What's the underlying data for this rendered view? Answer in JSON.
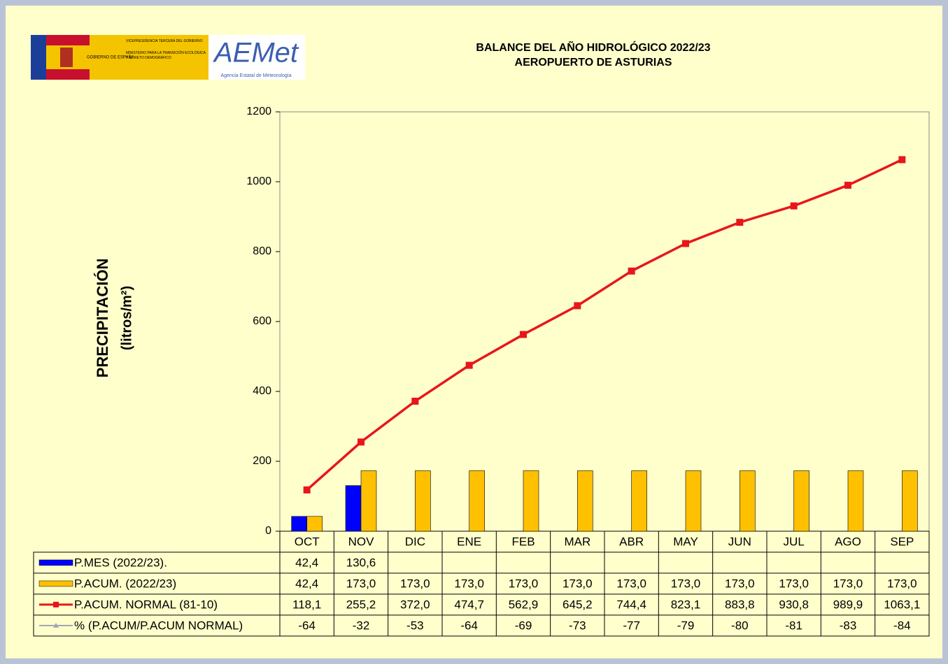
{
  "logo": {
    "gov": "GOBIERNO DE ESPAÑA",
    "vice": "VICEPRESIDENCIA TERCERA DEL GOBIERNO",
    "ministry": "MINISTERIO PARA LA TRANSICIÓN ECOLÓGICA Y EL RETO DEMOGRÁFICO",
    "brand": "AEMet",
    "agency": "Agencia Estatal de Meteorología"
  },
  "chart_data": {
    "type": "bar-line-table",
    "title": "BALANCE DEL AÑO HIDROLÓGICO 2022/23",
    "subtitle": "AEROPUERTO DE ASTURIAS",
    "ylabel": [
      "PRECIPITACIÓN",
      "(litros/m²)"
    ],
    "categories": [
      "OCT",
      "NOV",
      "DIC",
      "ENE",
      "FEB",
      "MAR",
      "ABR",
      "MAY",
      "JUN",
      "JUL",
      "AGO",
      "SEP"
    ],
    "ylim": [
      0,
      1200
    ],
    "yticks": [
      0,
      200,
      400,
      600,
      800,
      1000,
      1200
    ],
    "series": [
      {
        "name": "P.MES  (2022/23).",
        "kind": "bar",
        "color": "#0000ff",
        "values": [
          42.4,
          130.6,
          null,
          null,
          null,
          null,
          null,
          null,
          null,
          null,
          null,
          null
        ],
        "value_labels": [
          "42,4",
          "130,6",
          null,
          null,
          null,
          null,
          null,
          null,
          null,
          null,
          null,
          null
        ]
      },
      {
        "name": "P.ACUM.  (2022/23)",
        "kind": "bar",
        "color": "#ffc000",
        "values": [
          42.4,
          173.0,
          173.0,
          173.0,
          173.0,
          173.0,
          173.0,
          173.0,
          173.0,
          173.0,
          173.0,
          173.0
        ],
        "value_labels": [
          "42,4",
          "173,0",
          "173,0",
          "173,0",
          "173,0",
          "173,0",
          "173,0",
          "173,0",
          "173,0",
          "173,0",
          "173,0",
          "173,0"
        ]
      },
      {
        "name": "P.ACUM. NORMAL (81-10)",
        "kind": "line",
        "color": "#e8161b",
        "values": [
          118.1,
          255.2,
          372.0,
          474.7,
          562.9,
          645.2,
          744.4,
          823.1,
          883.8,
          930.8,
          989.9,
          1063.1
        ],
        "value_labels": [
          "118,1",
          "255,2",
          "372,0",
          "474,7",
          "562,9",
          "645,2",
          "744,4",
          "823,1",
          "883,8",
          "930,8",
          "989,9",
          "1063,1"
        ]
      },
      {
        "name": "% (P.ACUM/P.ACUM NORMAL)",
        "kind": "table-only",
        "color": "#a0a8b8",
        "values": [
          -64,
          -32,
          -53,
          -64,
          -69,
          -73,
          -77,
          -79,
          -80,
          -81,
          -83,
          -84
        ]
      }
    ]
  }
}
